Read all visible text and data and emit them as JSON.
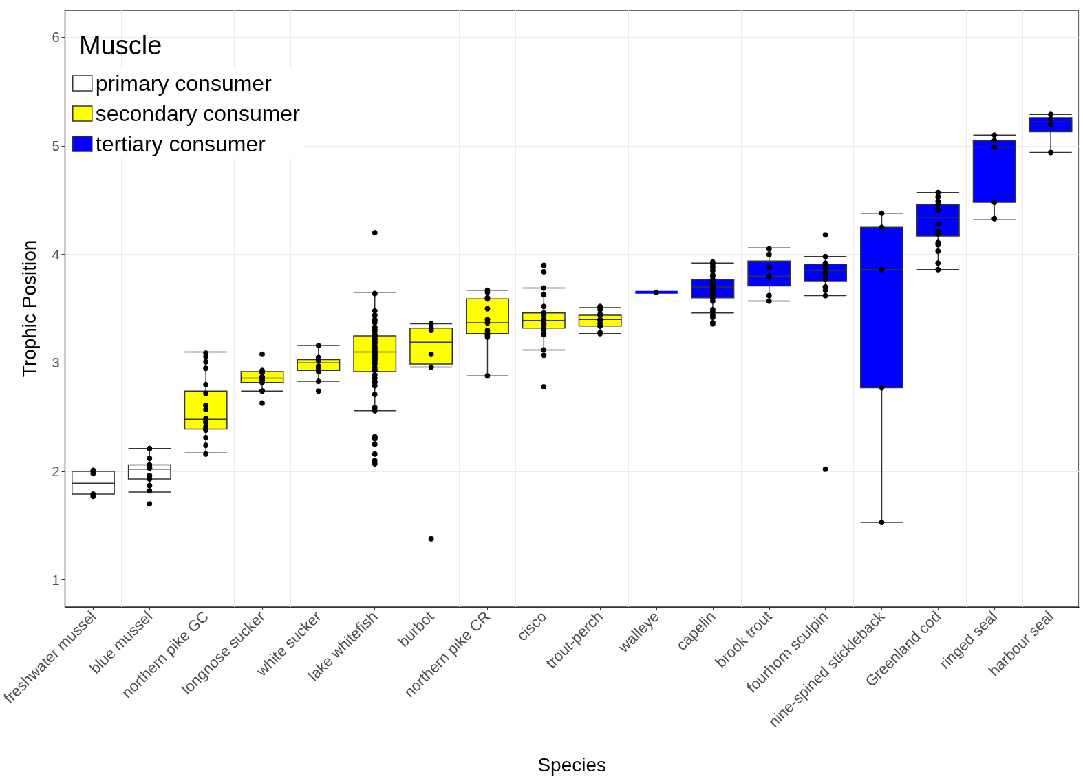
{
  "chart_data": {
    "type": "box",
    "xlabel": "Species",
    "ylabel": "Trophic Position",
    "legend_title": "Muscle",
    "categories": [
      "freshwater mussel",
      "blue mussel",
      "northern pike GC",
      "longnose sucker",
      "white sucker",
      "lake whitefish",
      "burbot",
      "northern pike CR",
      "cisco",
      "trout-perch",
      "walleye",
      "capelin",
      "brook trout",
      "fourhorn sculpin",
      "nine-spined stickleback",
      "Greenland cod",
      "ringed seal",
      "harbour seal"
    ],
    "ylim": [
      0.75,
      6.25
    ],
    "yticks": [
      1,
      2,
      3,
      4,
      5,
      6
    ],
    "grid": true,
    "legend": "top left",
    "series": [
      {
        "name": "primary consumer",
        "color": "#ffffff",
        "boxes": [
          {
            "low": 1.79,
            "q1": 1.79,
            "median": 1.89,
            "q3": 2.0,
            "high": 2.0
          },
          {
            "low": 1.81,
            "q1": 1.93,
            "median": 2.02,
            "q3": 2.06,
            "high": 2.21
          },
          null,
          null,
          null,
          null,
          null,
          null,
          null,
          null,
          null,
          null,
          null,
          null,
          null,
          null,
          null,
          null
        ]
      },
      {
        "name": "secondary consumer",
        "color": "#ffff00",
        "boxes": [
          null,
          null,
          {
            "low": 2.17,
            "q1": 2.39,
            "median": 2.48,
            "q3": 2.74,
            "high": 3.1
          },
          {
            "low": 2.74,
            "q1": 2.82,
            "median": 2.86,
            "q3": 2.92,
            "high": 2.92
          },
          {
            "low": 2.83,
            "q1": 2.93,
            "median": 3.0,
            "q3": 3.03,
            "high": 3.16
          },
          {
            "low": 2.56,
            "q1": 2.92,
            "median": 3.1,
            "q3": 3.25,
            "high": 3.65
          },
          {
            "low": 2.96,
            "q1": 2.99,
            "median": 3.19,
            "q3": 3.32,
            "high": 3.36
          },
          {
            "low": 2.88,
            "q1": 3.27,
            "median": 3.37,
            "q3": 3.59,
            "high": 3.67
          },
          {
            "low": 3.12,
            "q1": 3.32,
            "median": 3.39,
            "q3": 3.46,
            "high": 3.69
          },
          {
            "low": 3.27,
            "q1": 3.34,
            "median": 3.4,
            "q3": 3.44,
            "high": 3.51
          },
          null,
          null,
          null,
          null,
          null,
          null,
          null,
          null
        ]
      },
      {
        "name": "tertiary consumer",
        "color": "#0000ff",
        "boxes": [
          null,
          null,
          null,
          null,
          null,
          null,
          null,
          null,
          null,
          null,
          {
            "low": 3.65,
            "q1": 3.65,
            "median": 3.65,
            "q3": 3.65,
            "high": 3.65
          },
          {
            "low": 3.46,
            "q1": 3.6,
            "median": 3.7,
            "q3": 3.77,
            "high": 3.92
          },
          {
            "low": 3.57,
            "q1": 3.71,
            "median": 3.8,
            "q3": 3.94,
            "high": 4.06
          },
          {
            "low": 3.62,
            "q1": 3.75,
            "median": 3.85,
            "q3": 3.91,
            "high": 3.98
          },
          {
            "low": 1.53,
            "q1": 2.77,
            "median": 3.86,
            "q3": 4.25,
            "high": 4.38
          },
          {
            "low": 3.86,
            "q1": 4.17,
            "median": 4.34,
            "q3": 4.46,
            "high": 4.57
          },
          {
            "low": 4.32,
            "q1": 4.48,
            "median": 4.99,
            "q3": 5.05,
            "high": 5.1
          },
          {
            "low": 4.94,
            "q1": 5.13,
            "median": 5.22,
            "q3": 5.26,
            "high": 5.29
          }
        ]
      },
      {
        "type": "scatter",
        "color": "#000000",
        "marker": "circle",
        "x": [
          "freshwater mussel",
          "freshwater mussel",
          "freshwater mussel",
          "freshwater mussel",
          "freshwater mussel",
          "freshwater mussel",
          "blue mussel",
          "blue mussel",
          "blue mussel",
          "blue mussel",
          "blue mussel",
          "blue mussel",
          "blue mussel",
          "blue mussel",
          "blue mussel",
          "blue mussel",
          "blue mussel",
          "blue mussel",
          "northern pike GC",
          "northern pike GC",
          "northern pike GC",
          "northern pike GC",
          "northern pike GC",
          "northern pike GC",
          "northern pike GC",
          "northern pike GC",
          "northern pike GC",
          "northern pike GC",
          "northern pike GC",
          "northern pike GC",
          "northern pike GC",
          "northern pike GC",
          "northern pike GC",
          "northern pike GC",
          "northern pike GC",
          "northern pike GC",
          "northern pike GC",
          "longnose sucker",
          "longnose sucker",
          "longnose sucker",
          "longnose sucker",
          "longnose sucker",
          "longnose sucker",
          "longnose sucker",
          "longnose sucker",
          "longnose sucker",
          "longnose sucker",
          "longnose sucker",
          "white sucker",
          "white sucker",
          "white sucker",
          "white sucker",
          "white sucker",
          "white sucker",
          "white sucker",
          "white sucker",
          "white sucker",
          "lake whitefish",
          "lake whitefish",
          "lake whitefish",
          "lake whitefish",
          "lake whitefish",
          "lake whitefish",
          "lake whitefish",
          "lake whitefish",
          "lake whitefish",
          "lake whitefish",
          "lake whitefish",
          "lake whitefish",
          "lake whitefish",
          "lake whitefish",
          "lake whitefish",
          "lake whitefish",
          "lake whitefish",
          "lake whitefish",
          "lake whitefish",
          "lake whitefish",
          "lake whitefish",
          "lake whitefish",
          "lake whitefish",
          "lake whitefish",
          "lake whitefish",
          "lake whitefish",
          "lake whitefish",
          "lake whitefish",
          "lake whitefish",
          "lake whitefish",
          "lake whitefish",
          "lake whitefish",
          "lake whitefish",
          "lake whitefish",
          "lake whitefish",
          "lake whitefish",
          "lake whitefish",
          "lake whitefish",
          "lake whitefish",
          "lake whitefish",
          "lake whitefish",
          "lake whitefish",
          "lake whitefish",
          "lake whitefish",
          "lake whitefish",
          "lake whitefish",
          "lake whitefish",
          "lake whitefish",
          "lake whitefish",
          "lake whitefish",
          "burbot",
          "burbot",
          "burbot",
          "burbot",
          "burbot",
          "burbot",
          "northern pike CR",
          "northern pike CR",
          "northern pike CR",
          "northern pike CR",
          "northern pike CR",
          "northern pike CR",
          "northern pike CR",
          "northern pike CR",
          "northern pike CR",
          "northern pike CR",
          "northern pike CR",
          "northern pike CR",
          "cisco",
          "cisco",
          "cisco",
          "cisco",
          "cisco",
          "cisco",
          "cisco",
          "cisco",
          "cisco",
          "cisco",
          "cisco",
          "cisco",
          "cisco",
          "cisco",
          "cisco",
          "cisco",
          "cisco",
          "cisco",
          "trout-perch",
          "trout-perch",
          "trout-perch",
          "trout-perch",
          "trout-perch",
          "trout-perch",
          "trout-perch",
          "trout-perch",
          "trout-perch",
          "trout-perch",
          "trout-perch",
          "walleye",
          "capelin",
          "capelin",
          "capelin",
          "capelin",
          "capelin",
          "capelin",
          "capelin",
          "capelin",
          "capelin",
          "capelin",
          "capelin",
          "capelin",
          "capelin",
          "capelin",
          "capelin",
          "capelin",
          "capelin",
          "capelin",
          "capelin",
          "capelin",
          "capelin",
          "capelin",
          "capelin",
          "brook trout",
          "brook trout",
          "brook trout",
          "brook trout",
          "brook trout",
          "brook trout",
          "brook trout",
          "fourhorn sculpin",
          "fourhorn sculpin",
          "fourhorn sculpin",
          "fourhorn sculpin",
          "fourhorn sculpin",
          "fourhorn sculpin",
          "fourhorn sculpin",
          "fourhorn sculpin",
          "fourhorn sculpin",
          "fourhorn sculpin",
          "fourhorn sculpin",
          "fourhorn sculpin",
          "fourhorn sculpin",
          "fourhorn sculpin",
          "nine-spined stickleback",
          "nine-spined stickleback",
          "nine-spined stickleback",
          "nine-spined stickleback",
          "nine-spined stickleback",
          "Greenland cod",
          "Greenland cod",
          "Greenland cod",
          "Greenland cod",
          "Greenland cod",
          "Greenland cod",
          "Greenland cod",
          "Greenland cod",
          "Greenland cod",
          "Greenland cod",
          "Greenland cod",
          "Greenland cod",
          "Greenland cod",
          "Greenland cod",
          "ringed seal",
          "ringed seal",
          "ringed seal",
          "ringed seal",
          "ringed seal",
          "harbour seal",
          "harbour seal",
          "harbour seal",
          "harbour seal"
        ],
        "values": [
          1.77,
          1.98,
          2.01,
          2.0,
          1.78,
          1.79,
          2.21,
          2.21,
          2.12,
          2.06,
          2.04,
          2.03,
          1.96,
          1.96,
          1.93,
          1.87,
          1.82,
          1.7,
          3.09,
          3.06,
          3.01,
          2.95,
          2.8,
          2.72,
          2.61,
          2.61,
          2.57,
          2.49,
          2.46,
          2.45,
          2.39,
          2.38,
          2.41,
          2.39,
          2.31,
          2.24,
          2.16,
          3.08,
          2.91,
          2.92,
          2.93,
          2.84,
          2.86,
          2.87,
          2.82,
          2.74,
          2.74,
          2.63,
          3.16,
          3.05,
          3.02,
          3.03,
          2.97,
          2.95,
          2.92,
          2.83,
          2.74,
          4.2,
          3.64,
          3.48,
          3.44,
          3.4,
          3.39,
          3.37,
          3.33,
          3.31,
          3.29,
          3.26,
          3.25,
          3.23,
          3.22,
          3.21,
          3.19,
          3.18,
          3.15,
          3.14,
          3.13,
          3.11,
          3.1,
          3.09,
          3.08,
          3.07,
          3.06,
          3.05,
          3.04,
          3.03,
          3.02,
          3.0,
          2.99,
          2.96,
          2.94,
          2.93,
          2.89,
          2.86,
          2.83,
          2.82,
          2.79,
          2.71,
          2.59,
          2.56,
          2.31,
          2.32,
          2.3,
          2.25,
          2.16,
          2.1,
          2.07,
          3.36,
          3.32,
          3.3,
          3.08,
          2.96,
          1.38,
          3.67,
          3.65,
          3.59,
          3.6,
          3.5,
          3.4,
          3.37,
          3.3,
          3.27,
          3.26,
          3.24,
          2.88,
          3.9,
          3.84,
          3.69,
          3.63,
          3.52,
          3.46,
          3.44,
          3.4,
          3.39,
          3.36,
          3.35,
          3.32,
          3.31,
          3.27,
          3.26,
          3.12,
          3.07,
          2.78,
          3.44,
          3.45,
          3.51,
          3.49,
          3.4,
          3.39,
          3.36,
          3.34,
          3.28,
          3.27,
          3.52,
          3.65,
          3.93,
          3.88,
          3.81,
          3.8,
          3.77,
          3.74,
          3.72,
          3.7,
          3.67,
          3.65,
          3.63,
          3.6,
          3.57,
          3.49,
          3.47,
          3.44,
          3.42,
          3.37,
          3.36,
          3.91,
          3.85,
          3.73,
          3.71,
          4.05,
          4.0,
          3.88,
          3.8,
          3.79,
          3.62,
          3.57,
          4.18,
          3.98,
          3.92,
          3.91,
          3.87,
          3.83,
          3.81,
          3.78,
          3.77,
          3.7,
          3.67,
          3.62,
          3.7,
          2.02,
          4.38,
          4.25,
          3.86,
          2.77,
          1.53,
          4.57,
          4.53,
          4.49,
          4.46,
          4.41,
          4.41,
          4.28,
          4.21,
          4.19,
          4.11,
          4.09,
          4.03,
          3.92,
          3.86,
          5.1,
          5.05,
          4.99,
          4.48,
          4.33,
          5.29,
          5.25,
          5.2,
          4.94
        ]
      }
    ]
  }
}
